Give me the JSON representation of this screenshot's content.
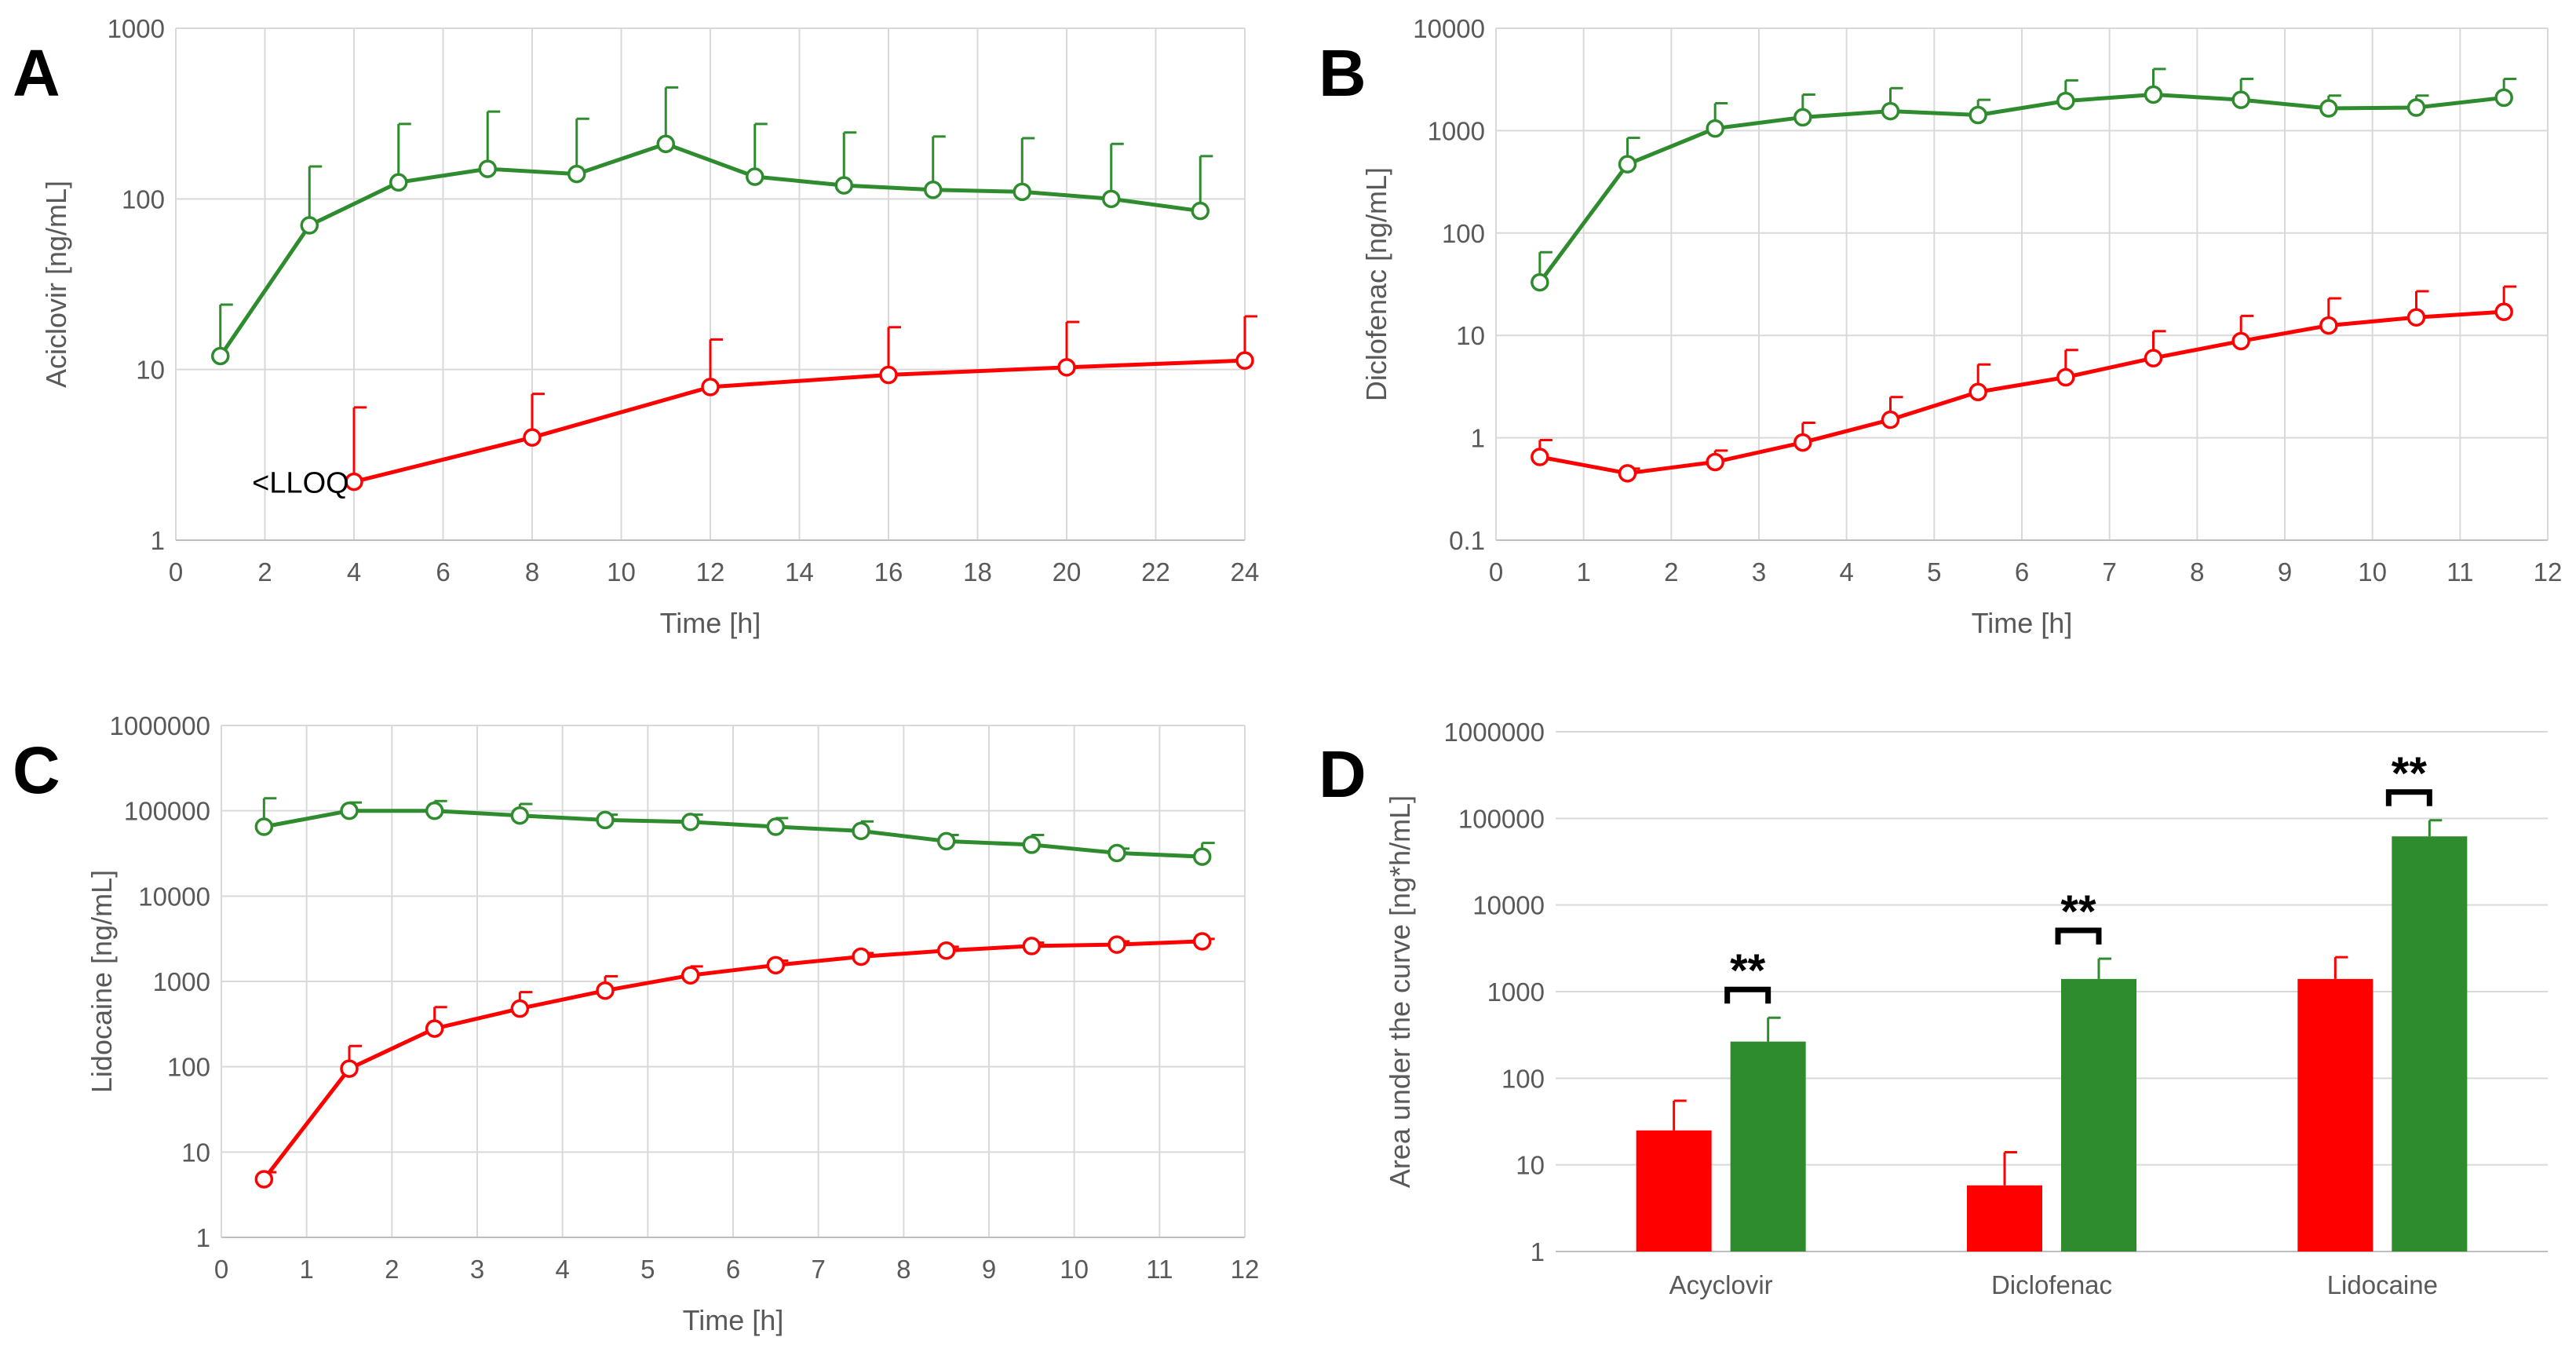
{
  "colors": {
    "red": "#ff0000",
    "green": "#2e8b2e",
    "grid": "#d9d9d9",
    "text": "#595959"
  },
  "chart_data": [
    {
      "id": "A",
      "letter": "A",
      "type": "line",
      "yscale": "log",
      "xlabel": "Time [h]",
      "ylabel": "Aciclovir [ng/mL]",
      "xlim": [
        0,
        24
      ],
      "xticks": [
        0,
        2,
        4,
        6,
        8,
        10,
        12,
        14,
        16,
        18,
        20,
        22,
        24
      ],
      "ylim": [
        1,
        1000
      ],
      "yticks": [
        1,
        10,
        100,
        1000
      ],
      "annotation": {
        "text": "<LLOQ",
        "x": 2.8,
        "y": 2.2
      },
      "series": [
        {
          "name": "green",
          "color": "green",
          "x": [
            1,
            3,
            5,
            7,
            9,
            11,
            13,
            15,
            17,
            19,
            21,
            23
          ],
          "y": [
            12,
            70,
            125,
            150,
            140,
            210,
            135,
            120,
            113,
            110,
            100,
            85
          ],
          "err": [
            24,
            155,
            275,
            325,
            295,
            450,
            275,
            245,
            232,
            227,
            210,
            178
          ]
        },
        {
          "name": "red",
          "color": "red",
          "x": [
            4,
            8,
            12,
            16,
            20,
            24
          ],
          "y": [
            2.2,
            4.0,
            7.9,
            9.3,
            10.3,
            11.3
          ],
          "err": [
            6.0,
            7.2,
            15.0,
            17.7,
            19.0,
            20.5
          ]
        }
      ]
    },
    {
      "id": "B",
      "letter": "B",
      "type": "line",
      "yscale": "log",
      "xlabel": "Time [h]",
      "ylabel": "Diclofenac [ng/mL]",
      "xlim": [
        0,
        12
      ],
      "xticks": [
        0,
        1,
        2,
        3,
        4,
        5,
        6,
        7,
        8,
        9,
        10,
        11,
        12
      ],
      "ylim": [
        0.1,
        10000
      ],
      "yticks": [
        0.1,
        1,
        10,
        100,
        1000,
        10000
      ],
      "series": [
        {
          "name": "green",
          "color": "green",
          "x": [
            0.5,
            1.5,
            2.5,
            3.5,
            4.5,
            5.5,
            6.5,
            7.5,
            8.5,
            9.5,
            10.5,
            11.5
          ],
          "y": [
            33,
            470,
            1050,
            1350,
            1550,
            1420,
            1950,
            2250,
            2000,
            1650,
            1680,
            2100
          ],
          "err": [
            65,
            850,
            1850,
            2250,
            2600,
            2000,
            3100,
            4000,
            3200,
            2200,
            2200,
            3200
          ]
        },
        {
          "name": "red",
          "color": "red",
          "x": [
            0.5,
            1.5,
            2.5,
            3.5,
            4.5,
            5.5,
            6.5,
            7.5,
            8.5,
            9.5,
            10.5,
            11.5
          ],
          "y": [
            0.65,
            0.45,
            0.58,
            0.9,
            1.5,
            2.8,
            3.9,
            6.0,
            8.8,
            12.5,
            15.0,
            17.0
          ],
          "err": [
            0.95,
            0.5,
            0.75,
            1.4,
            2.5,
            5.2,
            7.2,
            11.0,
            15.5,
            23.0,
            27.0,
            30.0
          ]
        }
      ]
    },
    {
      "id": "C",
      "letter": "C",
      "type": "line",
      "yscale": "log",
      "xlabel": "Time [h]",
      "ylabel": "Lidocaine [ng/mL]",
      "xlim": [
        0,
        12
      ],
      "xticks": [
        0,
        1,
        2,
        3,
        4,
        5,
        6,
        7,
        8,
        9,
        10,
        11,
        12
      ],
      "ylim": [
        1,
        1000000
      ],
      "yticks": [
        1,
        10,
        100,
        1000,
        10000,
        100000,
        1000000
      ],
      "series": [
        {
          "name": "green",
          "color": "green",
          "x": [
            0.5,
            1.5,
            2.5,
            3.5,
            4.5,
            5.5,
            6.5,
            7.5,
            8.5,
            9.5,
            10.5,
            11.5
          ],
          "y": [
            65000,
            100000,
            100000,
            88000,
            78000,
            74000,
            65000,
            58000,
            44000,
            40000,
            32000,
            29000
          ],
          "err": [
            140000,
            125000,
            130000,
            120000,
            90000,
            90000,
            82000,
            75000,
            52000,
            52000,
            36000,
            42000
          ]
        },
        {
          "name": "red",
          "color": "red",
          "x": [
            0.5,
            1.5,
            2.5,
            3.5,
            4.5,
            5.5,
            6.5,
            7.5,
            8.5,
            9.5,
            10.5,
            11.5
          ],
          "y": [
            4.8,
            95,
            280,
            480,
            780,
            1180,
            1550,
            1950,
            2300,
            2600,
            2700,
            2950
          ],
          "err": [
            5.8,
            175,
            500,
            750,
            1150,
            1500,
            1750,
            2150,
            2550,
            2850,
            2950,
            3150
          ]
        }
      ]
    },
    {
      "id": "D",
      "letter": "D",
      "type": "bar",
      "yscale": "log",
      "xlabel": "",
      "ylabel": "Area under the curve [ng*h/mL]",
      "ylim": [
        1,
        1000000
      ],
      "yticks": [
        1,
        10,
        100,
        1000,
        10000,
        100000,
        1000000
      ],
      "categories": [
        "Acyclovir",
        "Diclofenac",
        "Lidocaine"
      ],
      "series": [
        {
          "name": "red",
          "color": "red",
          "values": [
            25,
            5.8,
            1400
          ],
          "err": [
            55,
            14,
            2500
          ]
        },
        {
          "name": "green",
          "color": "green",
          "values": [
            265,
            1400,
            62000
          ],
          "err": [
            500,
            2400,
            95000
          ]
        }
      ],
      "significance": [
        "**",
        "**",
        "**"
      ]
    }
  ]
}
